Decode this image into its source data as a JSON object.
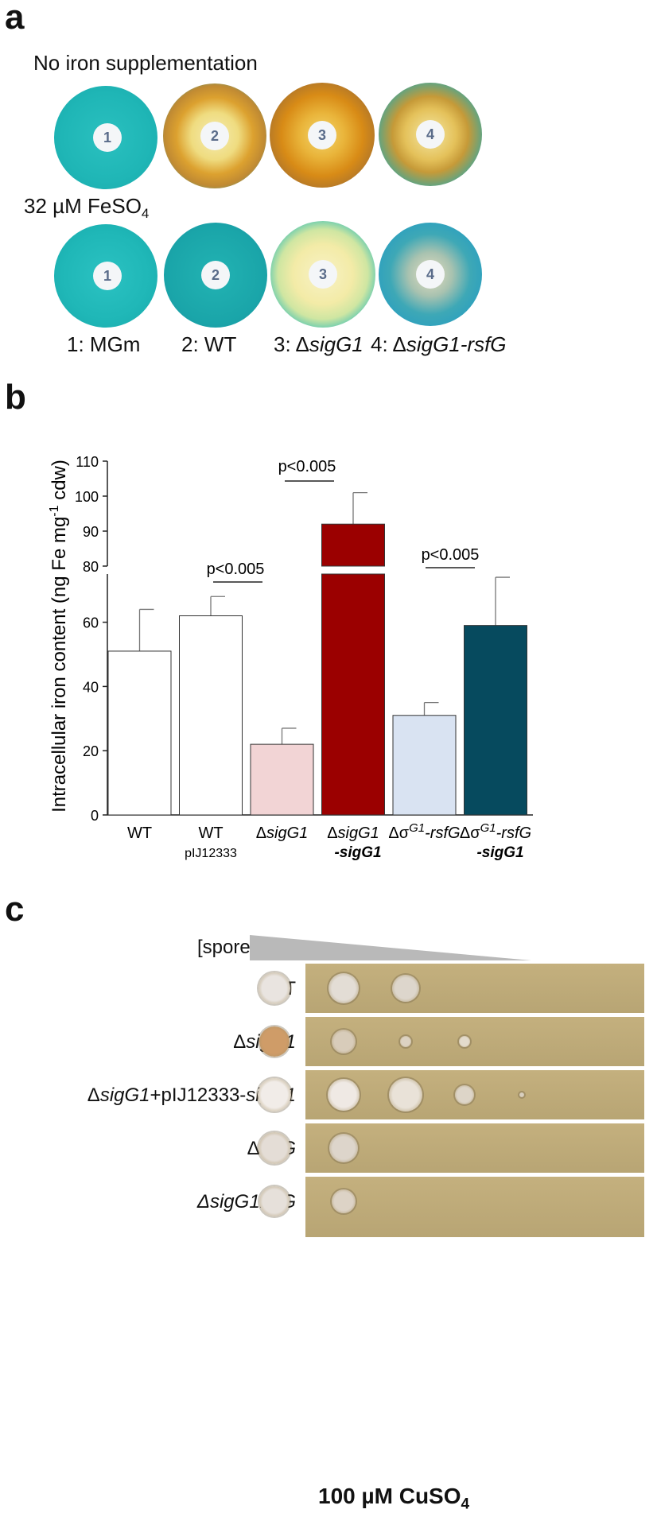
{
  "panel_a": {
    "letter": "a",
    "condition_top": "No iron supplementation",
    "condition_bottom_prefix": "32 µM FeSO",
    "condition_bottom_sub": "4",
    "plate_numbers": [
      "1",
      "2",
      "3",
      "4"
    ],
    "strain_labels": [
      {
        "prefix": "1: MGm",
        "italic": ""
      },
      {
        "prefix": "2: WT",
        "italic": ""
      },
      {
        "prefix": "3: Δ",
        "italic": "sigG1"
      },
      {
        "prefix": "4: Δ",
        "italic": "sigG1-rsfG"
      }
    ]
  },
  "panel_b": {
    "letter": "b",
    "p_labels": [
      "p<0.005",
      "p<0.005",
      "p<0.005"
    ],
    "chart_data": {
      "type": "bar",
      "ylabel": "Intracellular iron content (ng Fe mg-1 cdw)",
      "ylabel_main": "Intracellular iron content (ng Fe mg",
      "ylabel_sup": "-1",
      "ylabel_tail": " cdw)",
      "y_axis_break": [
        75,
        80
      ],
      "ylim": [
        0,
        110
      ],
      "yticks": [
        "0",
        "20",
        "40",
        "60",
        "80",
        "90",
        "100",
        "110"
      ],
      "categories": [
        "WT",
        "WT pIJ12333",
        "ΔsigG1",
        "ΔsigG1-sigG1",
        "ΔσG1-rsfG",
        "ΔσG1-rsfG-sigG1"
      ],
      "values": [
        51,
        62,
        22,
        92,
        31,
        59
      ],
      "errors": [
        13,
        6,
        5,
        9,
        4,
        15
      ],
      "colors": [
        "#ffffff",
        "#ffffff",
        "#f2d4d5",
        "#9b0000",
        "#d9e3f2",
        "#064a5e"
      ],
      "tick_label_parts": [
        {
          "l1": "WT",
          "l2": ""
        },
        {
          "l1": "WT",
          "l2": "pIJ12333"
        },
        {
          "l1a": "Δ",
          "l1b": "sigG1",
          "l2": ""
        },
        {
          "l1a": "Δ",
          "l1b": "sigG1",
          "l2": "-sigG1"
        },
        {
          "l1a": "Δσ",
          "l1sup": "G1",
          "l1b": "-rsfG",
          "l2": ""
        },
        {
          "l1a": "Δσ",
          "l1sup": "G1",
          "l1b": "-rsfG",
          "l2": "-sigG1"
        }
      ]
    }
  },
  "panel_c": {
    "letter": "c",
    "spores_label": "[spores]",
    "rows": [
      {
        "parts": [
          {
            "t": "WT",
            "i": false
          }
        ]
      },
      {
        "parts": [
          {
            "t": "Δ",
            "i": false
          },
          {
            "t": "sigG1",
            "i": true
          }
        ]
      },
      {
        "parts": [
          {
            "t": "Δ",
            "i": false
          },
          {
            "t": "sigG1",
            "i": true
          },
          {
            "t": "+pIJ12333-",
            "i": false
          },
          {
            "t": "sigG1",
            "i": true
          }
        ]
      },
      {
        "parts": [
          {
            "t": "Δ",
            "i": false
          },
          {
            "t": "rsfG",
            "i": true
          }
        ]
      },
      {
        "parts": [
          {
            "t": "ΔsigG1rsfG",
            "i": true
          }
        ]
      }
    ],
    "footer_prefix": "100 µM CuSO",
    "footer_sub": "4"
  },
  "colors": {
    "cas_blue": "#1fb8b8",
    "halo_yellow": "#f1e6a0",
    "halo_orange": "#c98a1c",
    "agar": "#bca877"
  }
}
